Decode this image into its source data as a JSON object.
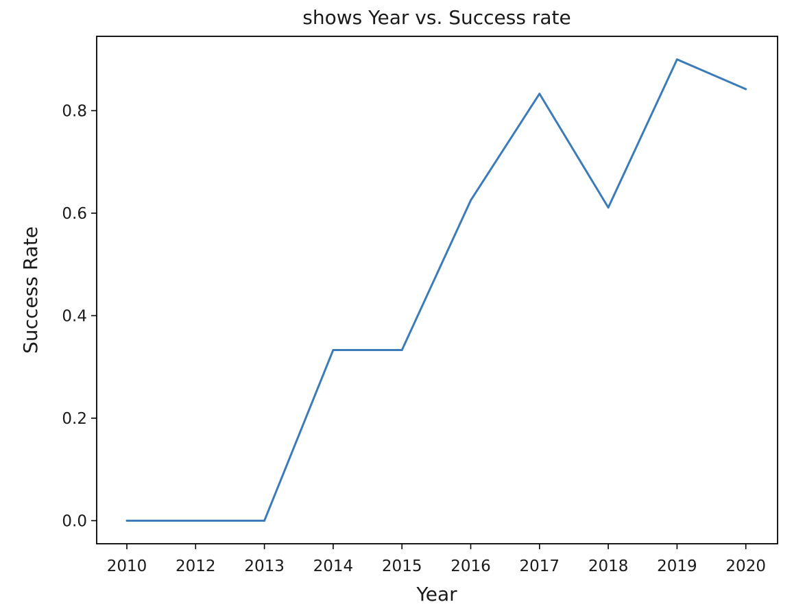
{
  "chart_data": {
    "type": "line",
    "title": "shows Year vs. Success rate",
    "xlabel": "Year",
    "ylabel": "Success Rate",
    "categories": [
      "2010",
      "2012",
      "2013",
      "2014",
      "2015",
      "2016",
      "2017",
      "2018",
      "2019",
      "2020"
    ],
    "series": [
      {
        "values": [
          0.0,
          0.0,
          0.0,
          0.333,
          0.333,
          0.625,
          0.833,
          0.611,
          0.9,
          0.842
        ],
        "color": "#3b7bb8"
      }
    ],
    "ylim": [
      -0.045,
      0.945
    ],
    "yticks": [
      "0.0",
      "0.2",
      "0.4",
      "0.6",
      "0.8"
    ],
    "ytick_values": [
      0.0,
      0.2,
      0.4,
      0.6,
      0.8
    ],
    "grid": false,
    "legend": "none"
  }
}
